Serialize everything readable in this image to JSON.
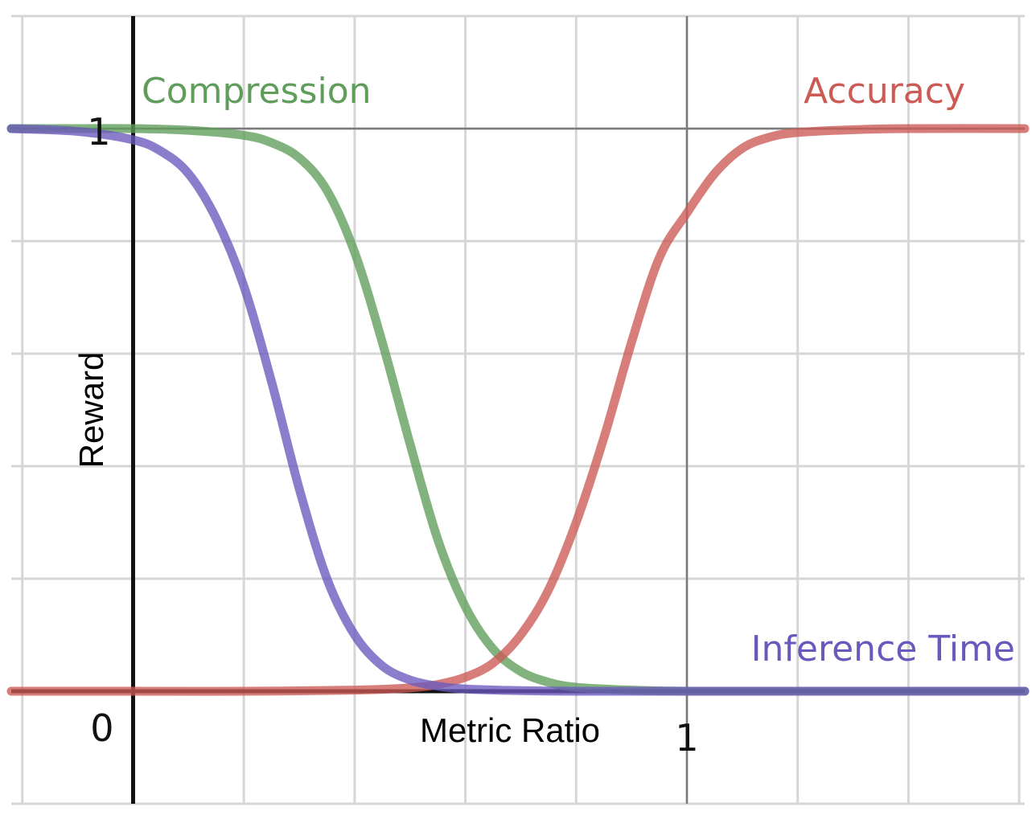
{
  "chart_data": {
    "type": "line",
    "title": "",
    "xlabel": "Metric Ratio",
    "ylabel": "Reward",
    "xlim": [
      -0.22,
      1.61
    ],
    "ylim": [
      -0.2,
      1.2
    ],
    "grid": true,
    "x_ticks": [
      {
        "value": 0,
        "label": "0"
      },
      {
        "value": 1,
        "label": "1"
      }
    ],
    "y_ticks": [
      {
        "value": 1,
        "label": "1"
      }
    ],
    "series": [
      {
        "name": "Compression",
        "color": "#5f9e5a",
        "x": [
          -0.22,
          -0.1,
          0.0,
          0.1,
          0.2,
          0.25,
          0.3,
          0.35,
          0.4,
          0.45,
          0.5,
          0.55,
          0.6,
          0.65,
          0.7,
          0.75,
          0.8,
          0.9,
          1.0,
          1.2,
          1.4,
          1.61
        ],
        "y": [
          1.0,
          1.0,
          1.0,
          0.997,
          0.988,
          0.975,
          0.948,
          0.89,
          0.78,
          0.62,
          0.44,
          0.27,
          0.15,
          0.075,
          0.035,
          0.016,
          0.007,
          0.002,
          0.0,
          0.0,
          0.0,
          0.0
        ]
      },
      {
        "name": "Accuracy",
        "color": "#cc5a55",
        "x": [
          -0.22,
          0.0,
          0.2,
          0.4,
          0.5,
          0.55,
          0.6,
          0.65,
          0.7,
          0.75,
          0.8,
          0.85,
          0.9,
          0.95,
          1.0,
          1.05,
          1.1,
          1.15,
          1.2,
          1.3,
          1.4,
          1.61
        ],
        "y": [
          0.0,
          0.0,
          0.0,
          0.002,
          0.006,
          0.012,
          0.025,
          0.05,
          0.1,
          0.18,
          0.3,
          0.45,
          0.62,
          0.77,
          0.85,
          0.92,
          0.965,
          0.985,
          0.993,
          0.998,
          1.0,
          1.0
        ]
      },
      {
        "name": "Inference Time",
        "color": "#6a58bd",
        "x": [
          -0.22,
          -0.1,
          0.0,
          0.05,
          0.1,
          0.15,
          0.2,
          0.25,
          0.3,
          0.35,
          0.4,
          0.45,
          0.5,
          0.55,
          0.6,
          0.7,
          0.8,
          1.0,
          1.3,
          1.61
        ],
        "y": [
          1.0,
          0.995,
          0.98,
          0.96,
          0.92,
          0.84,
          0.72,
          0.55,
          0.36,
          0.2,
          0.1,
          0.045,
          0.02,
          0.009,
          0.004,
          0.001,
          0.0,
          0.0,
          0.0,
          0.0
        ]
      }
    ]
  }
}
